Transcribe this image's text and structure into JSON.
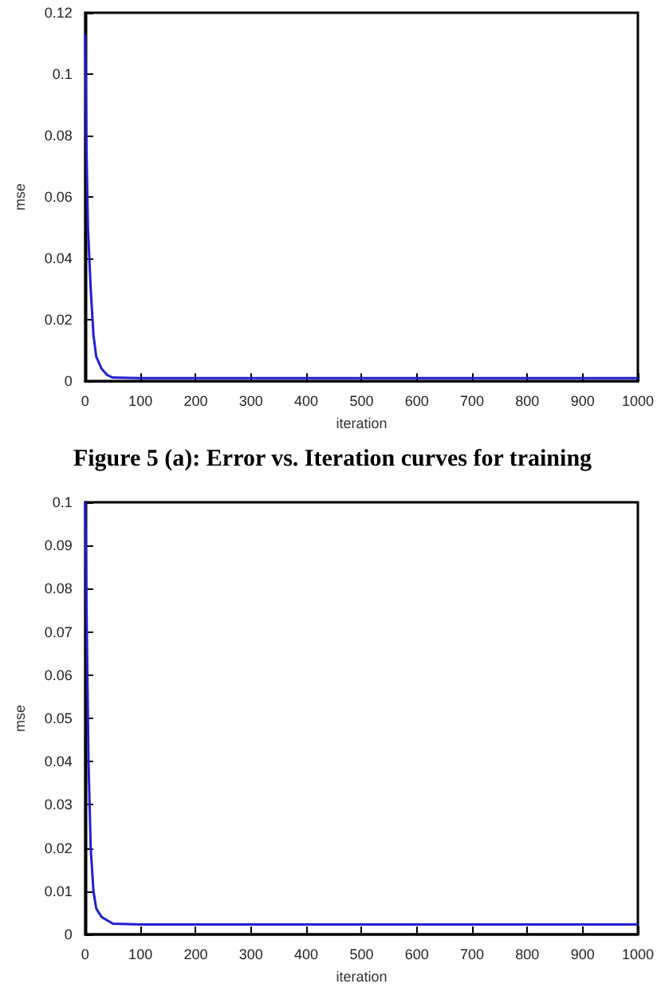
{
  "chart_data": [
    {
      "type": "line",
      "xlabel": "iteration",
      "ylabel": "mse",
      "x": [
        0,
        2,
        5,
        10,
        15,
        20,
        30,
        40,
        50,
        100,
        1000
      ],
      "series": [
        {
          "color": "#1f1fd6",
          "values": [
            0.113,
            0.08,
            0.05,
            0.03,
            0.015,
            0.008,
            0.004,
            0.002,
            0.0012,
            0.001,
            0.001
          ]
        }
      ],
      "xlim": [
        0,
        1000
      ],
      "xticks": [
        0,
        100,
        200,
        300,
        400,
        500,
        600,
        700,
        800,
        900,
        1000
      ],
      "ylim": [
        0,
        0.12
      ],
      "yticks": [
        0,
        0.02,
        0.04,
        0.06,
        0.08,
        0.1,
        0.12
      ],
      "grid": false,
      "marker": "none",
      "line_style": "solid",
      "annotations": [
        "Figure 5 (a): Error vs. Iteration curves for training"
      ]
    },
    {
      "type": "line",
      "xlabel": "iteration",
      "ylabel": "mse",
      "x": [
        0,
        3,
        6,
        10,
        15,
        20,
        30,
        50,
        100,
        1000
      ],
      "series": [
        {
          "color": "#1f1fd6",
          "values": [
            0.1,
            0.07,
            0.04,
            0.02,
            0.01,
            0.006,
            0.004,
            0.0025,
            0.0023,
            0.0023
          ]
        }
      ],
      "xlim": [
        0,
        1000
      ],
      "xticks": [
        0,
        100,
        200,
        300,
        400,
        500,
        600,
        700,
        800,
        900,
        1000
      ],
      "ylim": [
        0,
        0.1
      ],
      "yticks": [
        0,
        0.01,
        0.02,
        0.03,
        0.04,
        0.05,
        0.06,
        0.07,
        0.08,
        0.09,
        0.1
      ],
      "grid": false,
      "marker": "none",
      "line_style": "solid"
    }
  ]
}
